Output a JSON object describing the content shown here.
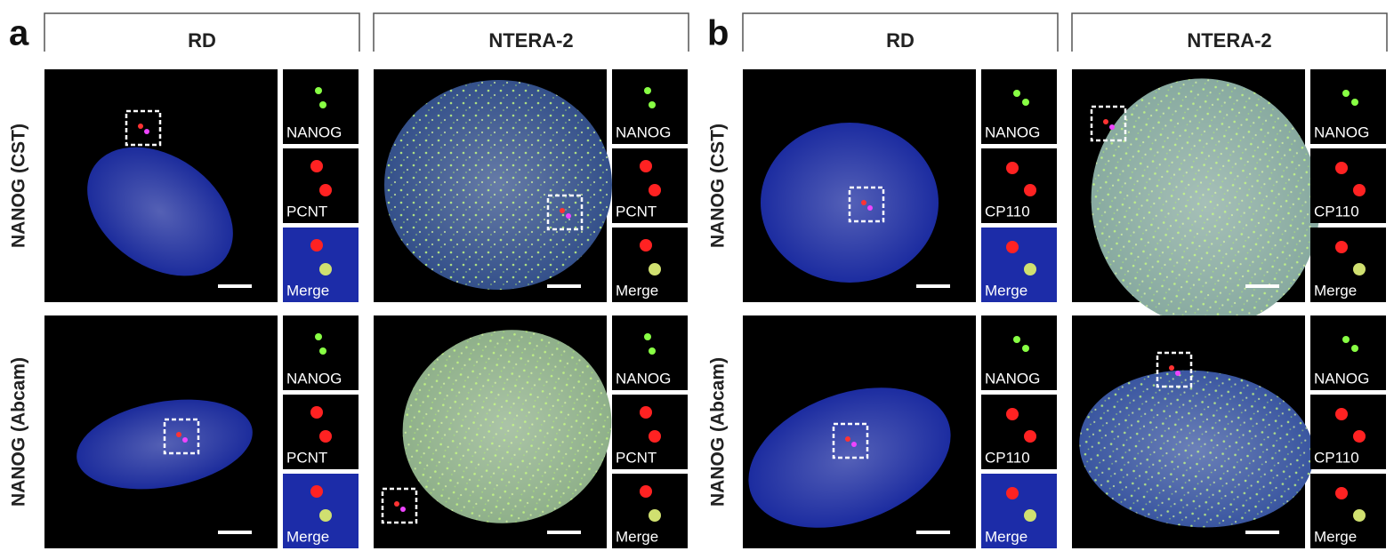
{
  "panels": [
    {
      "label": "a",
      "row_labels": [
        "NANOG (CST)",
        "NANOG (Abcam)"
      ],
      "columns": [
        {
          "title": "RD",
          "cells": [
            {
              "insets": [
                "NANOG",
                "PCNT",
                "Merge"
              ]
            },
            {
              "insets": [
                "NANOG",
                "PCNT",
                "Merge"
              ]
            }
          ]
        },
        {
          "title": "NTERA-2",
          "cells": [
            {
              "insets": [
                "NANOG",
                "PCNT",
                "Merge"
              ]
            },
            {
              "insets": [
                "NANOG",
                "PCNT",
                "Merge"
              ]
            }
          ]
        }
      ]
    },
    {
      "label": "b",
      "row_labels": [
        "NANOG (CST)",
        "NANOG (Abcam)"
      ],
      "columns": [
        {
          "title": "RD",
          "cells": [
            {
              "insets": [
                "NANOG",
                "CP110",
                "Merge"
              ]
            },
            {
              "insets": [
                "NANOG",
                "CP110",
                "Merge"
              ]
            }
          ]
        },
        {
          "title": "NTERA-2",
          "cells": [
            {
              "insets": [
                "NANOG",
                "CP110",
                "Merge"
              ]
            },
            {
              "insets": [
                "NANOG",
                "CP110",
                "Merge"
              ]
            }
          ]
        }
      ]
    }
  ]
}
